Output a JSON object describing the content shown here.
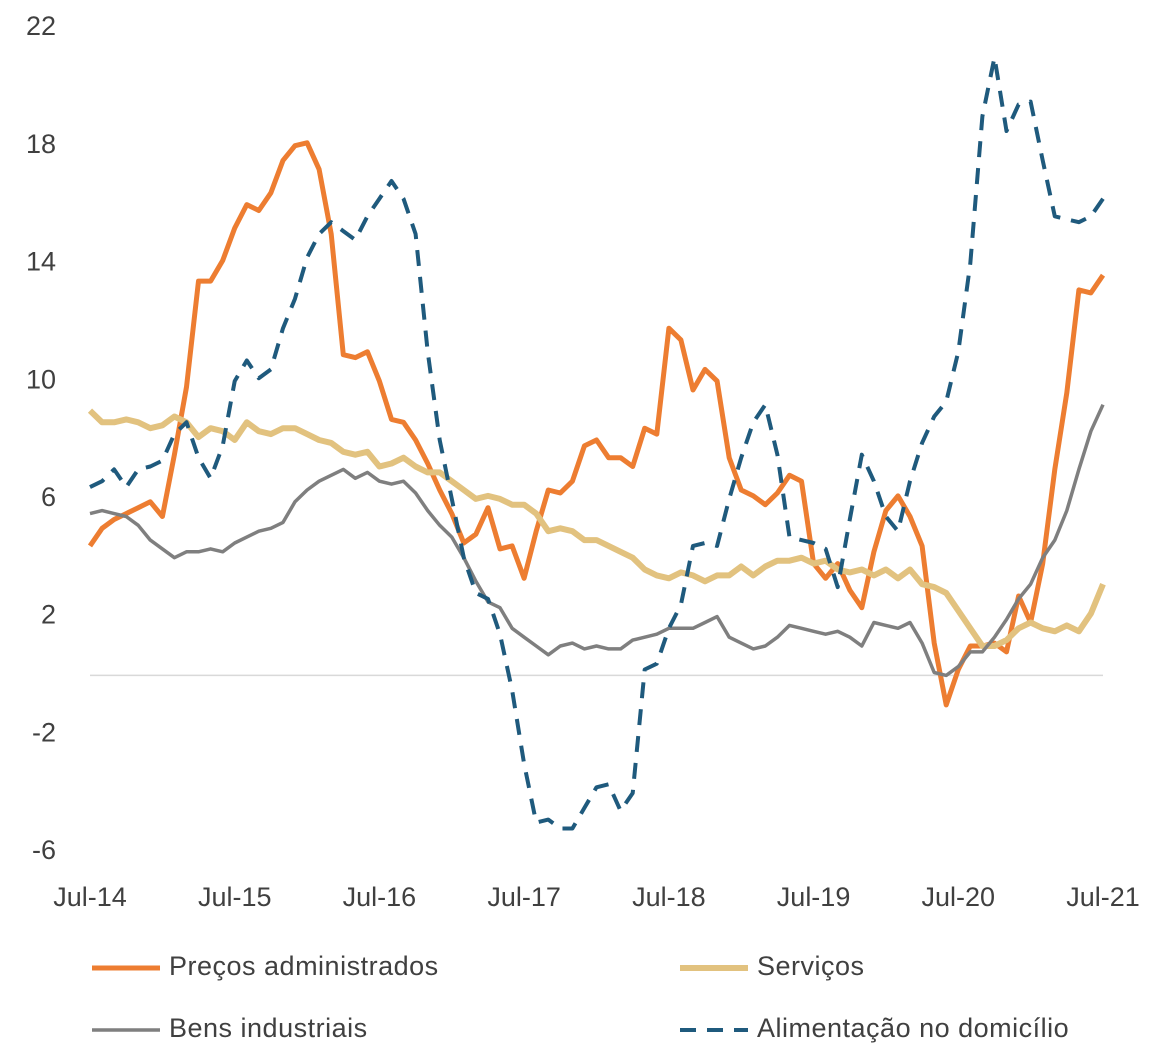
{
  "chart_data": {
    "type": "line",
    "categories": [
      "Jul-14",
      null,
      null,
      null,
      null,
      null,
      null,
      null,
      null,
      null,
      null,
      null,
      "Jul-15",
      null,
      null,
      null,
      null,
      null,
      null,
      null,
      null,
      null,
      null,
      null,
      "Jul-16",
      null,
      null,
      null,
      null,
      null,
      null,
      null,
      null,
      null,
      null,
      null,
      "Jul-17",
      null,
      null,
      null,
      null,
      null,
      null,
      null,
      null,
      null,
      null,
      null,
      "Jul-18",
      null,
      null,
      null,
      null,
      null,
      null,
      null,
      null,
      null,
      null,
      null,
      "Jul-19",
      null,
      null,
      null,
      null,
      null,
      null,
      null,
      null,
      null,
      null,
      null,
      "Jul-20",
      null,
      null,
      null,
      null,
      null,
      null,
      null,
      null,
      null,
      null,
      null,
      "Jul-21"
    ],
    "ylim": [
      -6,
      22
    ],
    "yticks": [
      -6,
      -2,
      2,
      6,
      10,
      14,
      18,
      22
    ],
    "series": [
      {
        "name": "Preços administrados",
        "color": "#ed7d31",
        "width": 5,
        "dash": false,
        "values": [
          4.4,
          5.0,
          5.3,
          5.5,
          5.7,
          5.9,
          5.4,
          7.5,
          9.8,
          13.4,
          13.4,
          14.1,
          15.2,
          16,
          15.8,
          16.4,
          17.5,
          18,
          18.1,
          17.2,
          15,
          10.9,
          10.8,
          11,
          10,
          8.7,
          8.6,
          8,
          7.2,
          6.3,
          5.5,
          4.5,
          4.8,
          5.7,
          4.3,
          4.4,
          3.3,
          4.9,
          6.3,
          6.2,
          6.6,
          7.8,
          8,
          7.4,
          7.4,
          7.1,
          8.4,
          8.2,
          11.8,
          11.4,
          9.7,
          10.4,
          10,
          7.4,
          6.3,
          6.1,
          5.8,
          6.2,
          6.8,
          6.6,
          3.8,
          3.3,
          3.8,
          2.9,
          2.3,
          4.2,
          5.6,
          6.1,
          5.4,
          4.4,
          1.1,
          -1,
          0.2,
          1,
          1,
          1.1,
          0.8,
          2.7,
          1.8,
          3.8,
          7,
          9.6,
          13.1,
          13,
          13.6
        ]
      },
      {
        "name": "Serviços",
        "color": "#e2c27f",
        "width": 6,
        "dash": false,
        "values": [
          9,
          8.6,
          8.6,
          8.7,
          8.6,
          8.4,
          8.5,
          8.8,
          8.6,
          8.1,
          8.4,
          8.3,
          8.0,
          8.6,
          8.3,
          8.2,
          8.4,
          8.4,
          8.2,
          8.0,
          7.9,
          7.6,
          7.5,
          7.6,
          7.1,
          7.2,
          7.4,
          7.1,
          6.9,
          6.9,
          6.6,
          6.3,
          6.0,
          6.1,
          6.0,
          5.8,
          5.8,
          5.5,
          4.9,
          5.0,
          4.9,
          4.6,
          4.6,
          4.4,
          4.2,
          4.0,
          3.6,
          3.4,
          3.3,
          3.5,
          3.4,
          3.2,
          3.4,
          3.4,
          3.7,
          3.4,
          3.7,
          3.9,
          3.9,
          4.0,
          3.8,
          3.9,
          3.6,
          3.5,
          3.6,
          3.4,
          3.6,
          3.3,
          3.6,
          3.1,
          3.0,
          2.8,
          2.2,
          1.6,
          1.0,
          1.0,
          1.2,
          1.6,
          1.8,
          1.6,
          1.5,
          1.7,
          1.5,
          2.1,
          3.1
        ]
      },
      {
        "name": "Bens industriais",
        "color": "#7f7f7f",
        "width": 3.5,
        "dash": false,
        "values": [
          5.5,
          5.6,
          5.5,
          5.4,
          5.1,
          4.6,
          4.3,
          4.0,
          4.2,
          4.2,
          4.3,
          4.2,
          4.5,
          4.7,
          4.9,
          5.0,
          5.2,
          5.9,
          6.3,
          6.6,
          6.8,
          7.0,
          6.7,
          6.9,
          6.6,
          6.5,
          6.6,
          6.2,
          5.6,
          5.1,
          4.7,
          4.0,
          3.2,
          2.5,
          2.3,
          1.6,
          1.3,
          1.0,
          0.7,
          1.0,
          1.1,
          0.9,
          1.0,
          0.9,
          0.9,
          1.2,
          1.3,
          1.4,
          1.6,
          1.6,
          1.6,
          1.8,
          2.0,
          1.3,
          1.1,
          0.9,
          1.0,
          1.3,
          1.7,
          1.6,
          1.5,
          1.4,
          1.5,
          1.3,
          1.0,
          1.8,
          1.7,
          1.6,
          1.8,
          1.1,
          0.1,
          0.0,
          0.3,
          0.8,
          0.8,
          1.3,
          1.9,
          2.6,
          3.1,
          4.0,
          4.6,
          5.6,
          7.0,
          8.3,
          9.2
        ]
      },
      {
        "name": "Alimentação no domicílio",
        "color": "#1f5a7d",
        "width": 4,
        "dash": true,
        "values": [
          6.4,
          6.6,
          7.0,
          6.4,
          7.0,
          7.1,
          7.3,
          8.2,
          8.6,
          7.4,
          6.7,
          7.8,
          10.0,
          10.7,
          10.1,
          10.4,
          11.8,
          12.8,
          14.2,
          15.0,
          15.4,
          15.1,
          14.8,
          15.6,
          16.2,
          16.8,
          16.2,
          15.0,
          11.0,
          8.0,
          6.0,
          4.0,
          2.8,
          2.6,
          1.4,
          -0.5,
          -3.0,
          -5.0,
          -4.9,
          -5.2,
          -5.2,
          -4.5,
          -3.8,
          -3.7,
          -4.6,
          -4.0,
          0.2,
          0.4,
          1.6,
          2.4,
          4.4,
          4.5,
          4.4,
          6.0,
          7.4,
          8.6,
          9.2,
          7.5,
          4.7,
          4.6,
          4.5,
          4.3,
          3.0,
          5.3,
          7.5,
          6.6,
          5.4,
          4.9,
          6.6,
          7.9,
          8.8,
          9.3,
          11.0,
          14.0,
          19.0,
          21.0,
          18.5,
          19.4,
          19.5,
          17.5,
          15.6,
          15.5,
          15.4,
          15.6,
          16.2
        ]
      }
    ]
  }
}
